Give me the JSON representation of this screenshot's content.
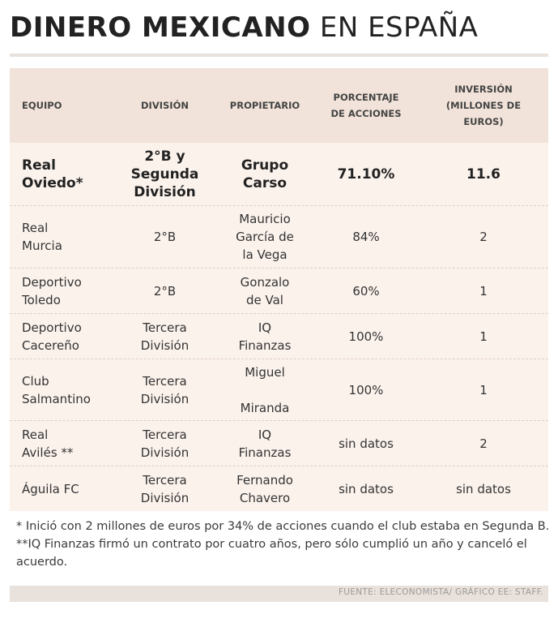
{
  "title": {
    "bold": "DINERO MEXICANO",
    "light": "EN ESPAÑA"
  },
  "table": {
    "headers": {
      "equipo": "EQUIPO",
      "division": "DIVISIÓN",
      "propietario": "PROPIETARIO",
      "porcentaje": [
        "PORCENTAJE",
        "DE ACCIONES"
      ],
      "inversion": [
        "INVERSIÓN",
        "(MILLONES DE",
        "EUROS)"
      ]
    },
    "rows": [
      {
        "equipo": [
          "Real",
          "Oviedo*"
        ],
        "division": [
          "2°B y",
          "Segunda",
          "División"
        ],
        "propietario": [
          "Grupo",
          "Carso"
        ],
        "porcentaje": "71.10%",
        "inversion": "11.6"
      },
      {
        "equipo": [
          "Real",
          "Murcia"
        ],
        "division": [
          "2°B"
        ],
        "propietario": [
          "Mauricio",
          "García de",
          "la Vega"
        ],
        "porcentaje": "84%",
        "inversion": "2"
      },
      {
        "equipo": [
          "Deportivo",
          "Toledo"
        ],
        "division": [
          "2°B"
        ],
        "propietario": [
          "Gonzalo",
          "de Val"
        ],
        "porcentaje": "60%",
        "inversion": "1"
      },
      {
        "equipo": [
          "Deportivo",
          "Cacereño"
        ],
        "division": [
          "Tercera",
          "División"
        ],
        "propietario": [
          "IQ",
          "Finanzas"
        ],
        "porcentaje": "100%",
        "inversion": "1"
      },
      {
        "equipo": [
          "Club",
          "Salmantino"
        ],
        "division": [
          "Tercera",
          "División"
        ],
        "propietario": [
          "Miguel",
          "Miranda"
        ],
        "porcentaje": "100%",
        "inversion": "1"
      },
      {
        "equipo": [
          "Real",
          "Avilés **"
        ],
        "division": [
          "Tercera",
          "División"
        ],
        "propietario": [
          "IQ",
          "Finanzas"
        ],
        "porcentaje": "sin datos",
        "inversion": "2"
      },
      {
        "equipo": [
          "Águila FC"
        ],
        "division": [
          "Tercera",
          "División"
        ],
        "propietario": [
          "Fernando",
          "Chavero"
        ],
        "porcentaje": "sin datos",
        "inversion": "sin datos"
      }
    ]
  },
  "notes": {
    "note1": "* Inició con 2 millones de euros por 34% de acciones cuando el club estaba en Segunda B.",
    "note2": "**IQ Finanzas firmó un contrato por cuatro años, pero sólo cumplió un año y canceló el acuerdo."
  },
  "footer": "FUENTE: ELECONOMISTA/  GRÁFICO EE: STAFF."
}
